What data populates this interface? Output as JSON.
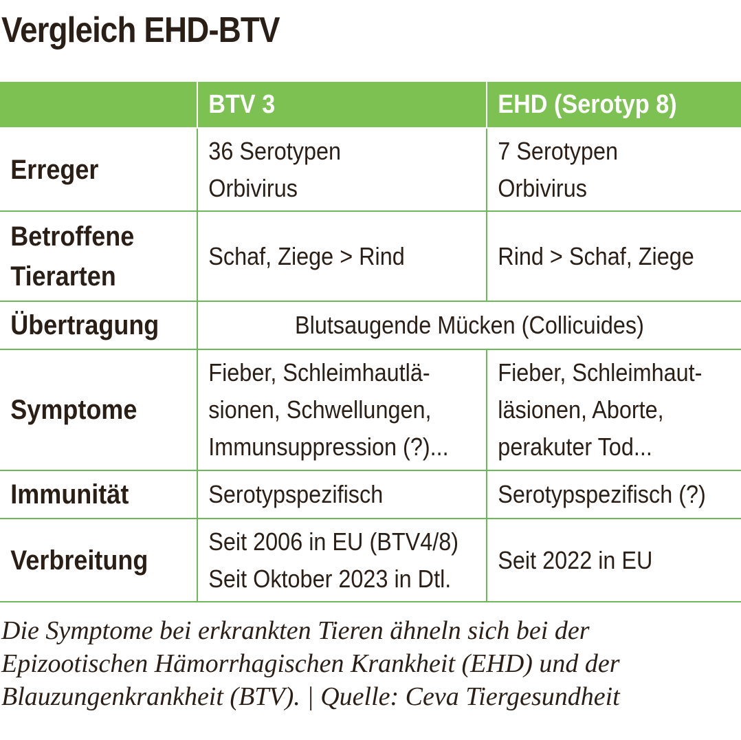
{
  "title": "Vergleich EHD-BTV",
  "table": {
    "headers": [
      "",
      "BTV 3",
      "EHD (Serotyp 8)"
    ],
    "rows": [
      {
        "label": [
          "Erreger"
        ],
        "btv": [
          "36 Serotypen",
          "Orbivirus"
        ],
        "ehd": [
          "7 Serotypen",
          "Orbivirus"
        ]
      },
      {
        "label": [
          "Betroffene",
          "Tierarten"
        ],
        "btv": [
          "Schaf, Ziege > Rind"
        ],
        "ehd": [
          "Rind > Schaf, Ziege"
        ]
      },
      {
        "label": [
          "Übertragung"
        ],
        "merged": "Blutsaugende Mücken (Collicuides)"
      },
      {
        "label": [
          "Symptome"
        ],
        "btv": [
          "Fieber, Schleimhautlä-",
          "sionen, Schwellungen,",
          "Immunsuppression (?)..."
        ],
        "ehd": [
          "Fieber, Schleimhaut-",
          "läsionen, Aborte,",
          "perakuter Tod..."
        ]
      },
      {
        "label": [
          "Immunität"
        ],
        "btv": [
          "Serotypspezifisch"
        ],
        "ehd": [
          "Serotypspezifisch (?)"
        ]
      },
      {
        "label": [
          "Verbreitung"
        ],
        "btv": [
          "Seit 2006 in EU (BTV4/8)",
          "Seit Oktober 2023 in Dtl."
        ],
        "ehd": [
          "Seit 2022 in EU"
        ]
      }
    ]
  },
  "caption": [
    "Die Symptome bei erkrankten Tieren ähneln sich bei der",
    "Epizootischen Hämorrhagischen Krankheit (EHD) und der",
    "Blauzungenkrankheit (BTV).  |  Quelle: Ceva Tiergesundheit"
  ],
  "colors": {
    "header_green": "#7cc152",
    "grid_green": "#6db858",
    "text": "#2a1f16"
  }
}
